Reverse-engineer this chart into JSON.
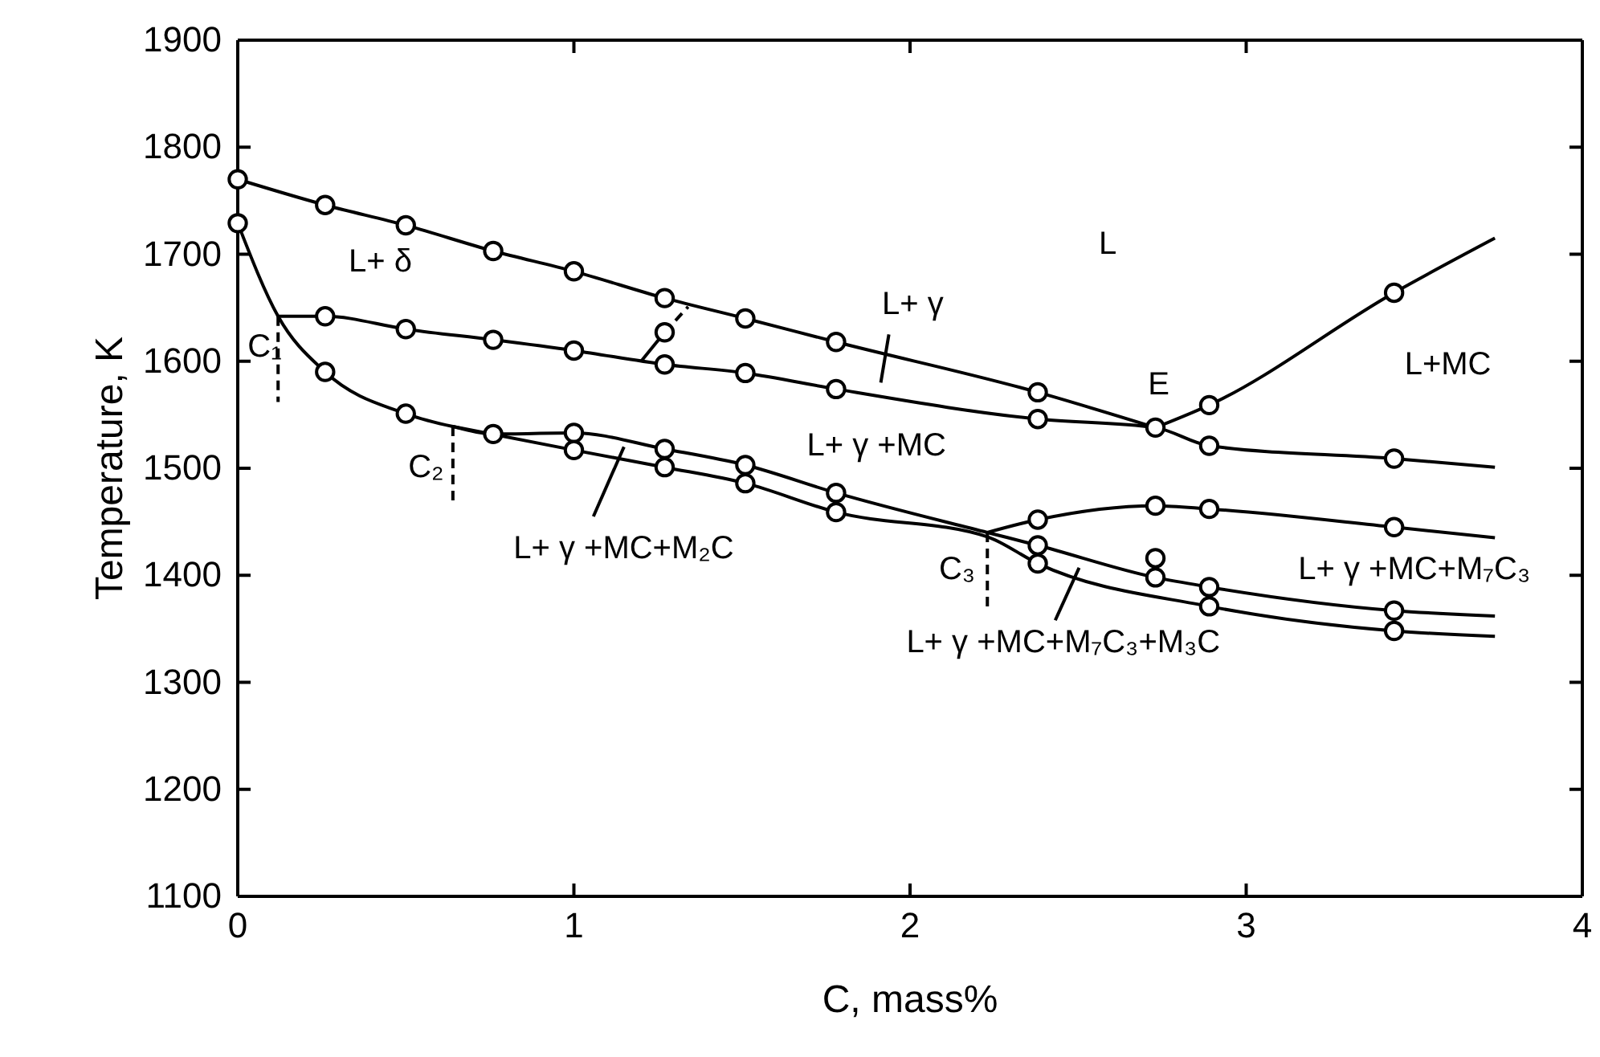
{
  "chart_data": {
    "type": "line",
    "xlabel": "C, mass%",
    "ylabel": "Temperature, K",
    "xlim": [
      0,
      4
    ],
    "ylim": [
      1100,
      1900
    ],
    "xticks": [
      0,
      1,
      2,
      3,
      4
    ],
    "yticks": [
      1100,
      1200,
      1300,
      1400,
      1500,
      1600,
      1700,
      1800,
      1900
    ],
    "grid": false,
    "series": [
      {
        "color": "#000000",
        "marker": "none",
        "line_style": "solid",
        "x": [
          0,
          0.26,
          0.5,
          0.76,
          1,
          1.27,
          1.51,
          1.78,
          2.38,
          2.73
        ],
        "values": [
          1770,
          1746,
          1727,
          1703,
          1684,
          1659,
          1640,
          1618,
          1571,
          1538
        ]
      },
      {
        "type": "line",
        "color": "#000000",
        "marker": "none",
        "line_style": "solid",
        "x": [
          2.73,
          2.89,
          3.44,
          3.74
        ],
        "values": [
          1538,
          1559,
          1664,
          1715
        ]
      },
      {
        "type": "line",
        "color": "#000000",
        "marker": "none",
        "line_style": "solid",
        "x": [
          0.12,
          0.26,
          0.5,
          0.76,
          1,
          1.27,
          1.51,
          1.78,
          2.38,
          2.73,
          2.89,
          3.44,
          3.74
        ],
        "values": [
          1642,
          1642,
          1630,
          1620,
          1610,
          1597,
          1589,
          1574,
          1546,
          1538,
          1521,
          1509,
          1501
        ]
      },
      {
        "type": "line",
        "color": "#000000",
        "marker": "none",
        "line_style": "solid",
        "x": [
          1.2,
          1.27
        ],
        "values": [
          1600,
          1627
        ]
      },
      {
        "type": "line",
        "color": "#000000",
        "marker": "none",
        "line_style": "dashed",
        "x": [
          1.27,
          1.34
        ],
        "values": [
          1627,
          1651
        ]
      },
      {
        "type": "line",
        "color": "#000000",
        "marker": "none",
        "line_style": "solid",
        "x": [
          0,
          0.12,
          0.26,
          0.5,
          0.64,
          0.76,
          1,
          1.27,
          1.51,
          1.78,
          2.23,
          2.38,
          2.73,
          2.89,
          3.44,
          3.74
        ],
        "values": [
          1729,
          1642,
          1590,
          1551,
          1539,
          1532,
          1533,
          1518,
          1503,
          1477,
          1440,
          1428,
          1398,
          1389,
          1367,
          1362
        ]
      },
      {
        "type": "line",
        "color": "#000000",
        "marker": "none",
        "line_style": "solid",
        "x": [
          0.64,
          1,
          1.27,
          1.51,
          1.78,
          2.23,
          2.38,
          2.89,
          3.44,
          3.74
        ],
        "values": [
          1539,
          1517,
          1501,
          1486,
          1459,
          1436,
          1411,
          1371,
          1348,
          1343
        ]
      },
      {
        "type": "line",
        "color": "#000000",
        "marker": "none",
        "line_style": "solid",
        "x": [
          2.23,
          2.38,
          2.73,
          2.89,
          3.44,
          3.74
        ],
        "values": [
          1440,
          1452,
          1465,
          1462,
          1445,
          1435
        ]
      },
      {
        "type": "line",
        "color": "#000000",
        "marker": "none",
        "line_style": "dashed",
        "x": [
          0.12,
          0.12
        ],
        "values": [
          1642,
          1562
        ]
      },
      {
        "type": "line",
        "color": "#000000",
        "marker": "none",
        "line_style": "dashed",
        "x": [
          0.64,
          0.64
        ],
        "values": [
          1539,
          1465
        ]
      },
      {
        "type": "line",
        "color": "#000000",
        "marker": "none",
        "line_style": "dashed",
        "x": [
          2.23,
          2.23
        ],
        "values": [
          1440,
          1365
        ]
      },
      {
        "type": "line",
        "color": "#000000",
        "marker": "none",
        "line_style": "solid",
        "x": [
          1.937,
          1.913
        ],
        "values": [
          1625,
          1580
        ]
      },
      {
        "type": "line",
        "color": "#000000",
        "marker": "none",
        "line_style": "solid",
        "x": [
          1.149,
          1.058
        ],
        "values": [
          1520,
          1455
        ]
      },
      {
        "type": "line",
        "color": "#000000",
        "marker": "none",
        "line_style": "solid",
        "x": [
          2.503,
          2.432
        ],
        "values": [
          1407,
          1358
        ]
      },
      {
        "type": "scatter",
        "color": "#000000",
        "marker": "circle",
        "x": [
          0,
          0.26,
          0.5,
          0.76,
          1,
          1.27,
          1.51,
          1.78,
          2.38,
          2.73,
          2.89,
          3.44,
          0.26,
          0.5,
          0.76,
          1,
          1.27,
          1.51,
          1.78,
          2.38,
          2.89,
          3.44,
          1.27,
          0,
          0.26,
          0.5,
          0.76,
          1,
          1.27,
          1.51,
          1.78,
          2.38,
          2.73,
          2.89,
          3.44,
          1,
          1.27,
          1.51,
          1.78,
          2.38,
          2.89,
          3.44,
          2.38,
          2.73,
          2.89,
          3.44,
          2.73
        ],
        "values": [
          1770,
          1746,
          1727,
          1703,
          1684,
          1659,
          1640,
          1618,
          1571,
          1538,
          1559,
          1664,
          1642,
          1630,
          1620,
          1610,
          1597,
          1589,
          1574,
          1546,
          1521,
          1509,
          1627,
          1729,
          1590,
          1551,
          1532,
          1533,
          1518,
          1503,
          1477,
          1428,
          1398,
          1389,
          1367,
          1517,
          1501,
          1486,
          1459,
          1411,
          1371,
          1348,
          1452,
          1465,
          1462,
          1445,
          1416
        ]
      }
    ],
    "annotations": [
      "L+ δ",
      "L",
      "L+ γ",
      "E",
      "L+MC",
      "L+ γ +MC",
      "L+ γ +MC+M₂C",
      "L+ γ +MC+M₇C₃",
      "L+ γ +MC+M₇C₃+M₃C",
      "C₁",
      "C₂",
      "C₃"
    ]
  }
}
